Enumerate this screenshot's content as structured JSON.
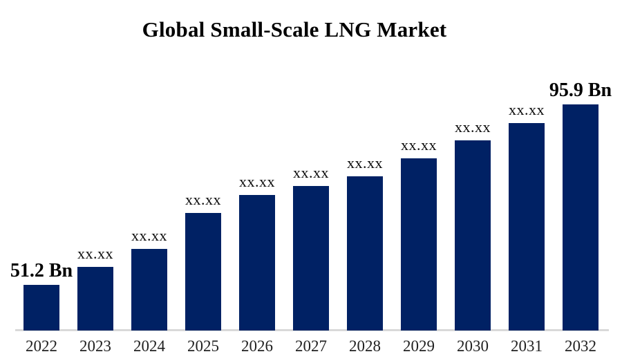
{
  "title": "Global Small-Scale LNG Market",
  "chart_data": {
    "type": "bar",
    "title": "Global Small-Scale LNG Market",
    "unit": "USD Bn",
    "categories": [
      "2022",
      "2023",
      "2024",
      "2025",
      "2026",
      "2027",
      "2028",
      "2029",
      "2030",
      "2031",
      "2032"
    ],
    "bars": [
      {
        "year": "2022",
        "label": "51.2 Bn",
        "value": 51.2,
        "emphasized": true
      },
      {
        "year": "2023",
        "label": "xx.xx",
        "value": 55.7,
        "emphasized": false
      },
      {
        "year": "2024",
        "label": "xx.xx",
        "value": 60.1,
        "emphasized": false
      },
      {
        "year": "2025",
        "label": "xx.xx",
        "value": 69.0,
        "emphasized": false
      },
      {
        "year": "2026",
        "label": "xx.xx",
        "value": 73.5,
        "emphasized": false
      },
      {
        "year": "2027",
        "label": "xx.xx",
        "value": 75.7,
        "emphasized": false
      },
      {
        "year": "2028",
        "label": "xx.xx",
        "value": 78.1,
        "emphasized": false
      },
      {
        "year": "2029",
        "label": "xx.xx",
        "value": 82.5,
        "emphasized": false
      },
      {
        "year": "2030",
        "label": "xx.xx",
        "value": 87.0,
        "emphasized": false
      },
      {
        "year": "2031",
        "label": "xx.xx",
        "value": 91.3,
        "emphasized": false
      },
      {
        "year": "2032",
        "label": "95.9 Bn",
        "value": 95.9,
        "emphasized": true
      }
    ],
    "first_value_label": "51.2 Bn",
    "last_value_label": "95.9 Bn",
    "hidden_value_placeholder": "xx.xx",
    "bar_color": "#002164",
    "axis_line_color": "#d9d9d9",
    "legend": "none",
    "gridlines": "off",
    "y_axis": "hidden",
    "ylim_estimated": [
      39.9,
      100
    ]
  }
}
